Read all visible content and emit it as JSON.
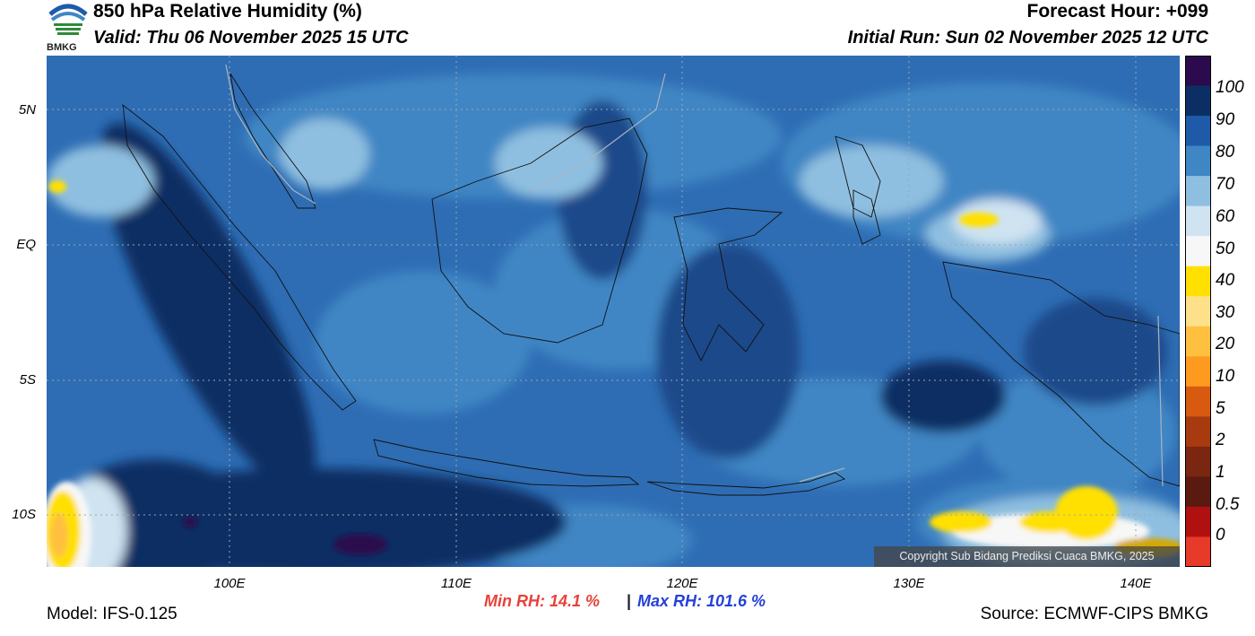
{
  "header": {
    "title": "850 hPa Relative Humidity (%)",
    "valid": "Valid: Thu 06 November 2025 15 UTC",
    "forecast_hour": "Forecast Hour: +099",
    "initial_run": "Initial Run: Sun 02 November 2025 12 UTC",
    "logo_text": "BMKG"
  },
  "map": {
    "lat_labels": [
      "5N",
      "EQ",
      "5S",
      "10S"
    ],
    "lon_labels": [
      "100E",
      "110E",
      "120E",
      "130E",
      "140E"
    ],
    "copyright": "Copyright Sub Bidang Prediksi Cuaca BMKG, 2025"
  },
  "colorbar": {
    "labels": [
      "100",
      "90",
      "80",
      "70",
      "60",
      "50",
      "40",
      "30",
      "20",
      "10",
      "5",
      "2",
      "1",
      "0.5",
      "0"
    ],
    "colors": [
      "#2c0a4e",
      "#0b2f64",
      "#1f5aa8",
      "#3f86c4",
      "#8fbfe0",
      "#cfe3f1",
      "#f7f7f7",
      "#ffe000",
      "#ffe08a",
      "#ffc040",
      "#ff9a20",
      "#d85a10",
      "#a83a10",
      "#7a2610",
      "#5a1a10",
      "#b01010",
      "#e83a2a"
    ]
  },
  "stats": {
    "min_rh": "Min RH:  14.1 %",
    "separator": "|",
    "max_rh": "Max RH: 101.6 %"
  },
  "footer": {
    "model": "Model: IFS-0.125",
    "source": "Source: ECMWF-CIPS BMKG"
  }
}
